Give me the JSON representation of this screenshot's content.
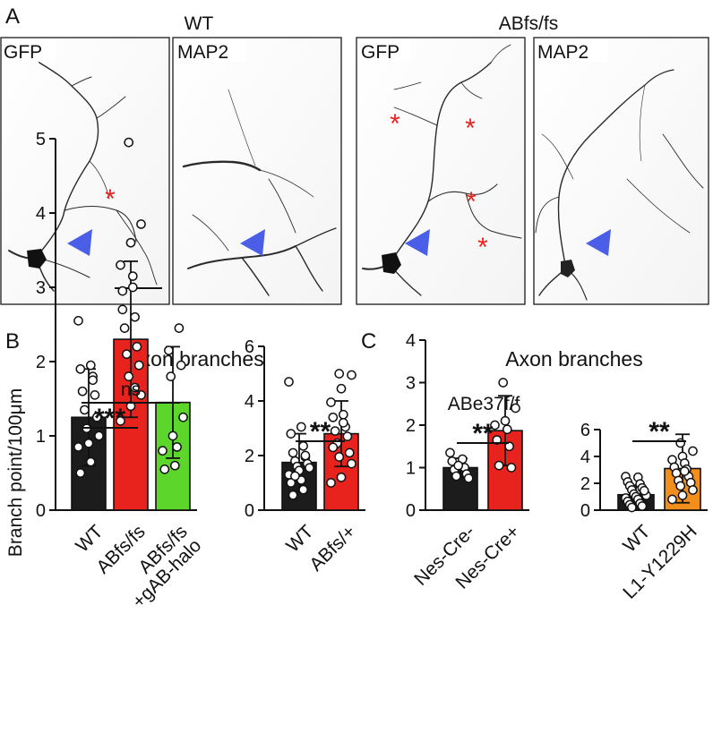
{
  "panel_a": {
    "letter": "A",
    "groups": [
      {
        "title": "WT",
        "panels": [
          {
            "label": "GFP",
            "asterisks": 1
          },
          {
            "label": "MAP2"
          }
        ]
      },
      {
        "title": "ABfs/fs",
        "panels": [
          {
            "label": "GFP",
            "asterisks": 4
          },
          {
            "label": "MAP2"
          }
        ]
      }
    ],
    "arrowhead_color": "#4a5ee8",
    "asterisk_color": "#e8231e",
    "asterisk_symbol": "*"
  },
  "panel_b": {
    "letter": "B",
    "title": "Axon branches"
  },
  "panel_c": {
    "letter": "C",
    "title": "Axon branches"
  },
  "chart_data": [
    {
      "type": "bar",
      "panel": "B",
      "ylabel": "Branch point/100μm",
      "ylim": [
        0,
        5
      ],
      "yticks": [
        "0",
        "1",
        "2",
        "3",
        "4",
        "5"
      ],
      "categories": [
        "WT",
        "ABfs/fs",
        "ABfs/fs\n+gAB-halo"
      ],
      "values": [
        1.25,
        2.3,
        1.45
      ],
      "errors": [
        0.65,
        1.05,
        0.75
      ],
      "colors": [
        "#1c1c1c",
        "#e8231e",
        "#5cd62a"
      ],
      "points": [
        [
          2.55,
          1.95,
          1.9,
          1.8,
          1.6,
          1.55,
          1.35,
          1.25,
          1.1,
          1.0,
          0.9,
          0.85,
          0.65,
          0.5,
          1.75
        ],
        [
          4.95,
          3.85,
          3.6,
          3.3,
          3.15,
          2.95,
          2.6,
          2.45,
          2.2,
          2.1,
          1.95,
          1.8,
          1.55,
          1.4,
          1.2,
          3.0,
          2.7,
          1.65
        ],
        [
          2.45,
          2.15,
          1.95,
          1.8,
          1.25,
          1.0,
          0.8,
          0.6,
          0.55,
          0.85
        ]
      ],
      "significance": [
        {
          "between": [
            0,
            1
          ],
          "label": "***"
        },
        {
          "between": [
            0,
            2
          ],
          "label": "ns"
        }
      ]
    },
    {
      "type": "bar",
      "panel": "B",
      "ylim": [
        0,
        6
      ],
      "yticks": [
        "0",
        "2",
        "4",
        "6"
      ],
      "categories": [
        "WT",
        "ABfs/+"
      ],
      "values": [
        1.75,
        2.8
      ],
      "errors": [
        1.05,
        1.2
      ],
      "colors": [
        "#1c1c1c",
        "#e8231e"
      ],
      "points": [
        [
          4.7,
          3.05,
          2.8,
          2.35,
          2.1,
          1.95,
          1.8,
          1.7,
          1.6,
          1.55,
          1.45,
          1.3,
          1.1,
          1.0,
          0.75,
          0.55,
          2.0,
          1.25
        ],
        [
          5.0,
          4.95,
          4.45,
          3.95,
          3.5,
          3.4,
          3.05,
          2.9,
          2.7,
          2.45,
          2.1,
          1.95,
          1.7,
          1.2,
          1.0,
          3.2,
          2.3
        ]
      ],
      "significance": [
        {
          "between": [
            0,
            1
          ],
          "label": "**"
        }
      ]
    },
    {
      "type": "bar",
      "panel": "C",
      "title": "ABe37f/f",
      "ylim": [
        0,
        4
      ],
      "yticks": [
        "0",
        "1",
        "2",
        "3",
        "4"
      ],
      "categories": [
        "Nes-Cre-",
        "Nes-Cre+"
      ],
      "values": [
        1.0,
        1.87
      ],
      "errors": [
        0.22,
        0.82
      ],
      "colors": [
        "#1c1c1c",
        "#e8231e"
      ],
      "points": [
        [
          1.35,
          1.2,
          1.15,
          1.0,
          0.95,
          0.85,
          0.8,
          0.75,
          1.05
        ],
        [
          3.0,
          2.4,
          2.1,
          2.0,
          1.9,
          1.65,
          1.5,
          1.05,
          1.0
        ]
      ],
      "significance": [
        {
          "between": [
            0,
            1
          ],
          "label": "**"
        }
      ]
    },
    {
      "type": "bar",
      "panel": "C",
      "ylim": [
        0,
        6
      ],
      "yticks": [
        "0",
        "2",
        "4",
        "6"
      ],
      "categories": [
        "WT",
        "L1-Y1229H"
      ],
      "values": [
        1.15,
        3.1
      ],
      "errors": [
        0.7,
        2.55
      ],
      "colors": [
        "#1c1c1c",
        "#f28e1c"
      ],
      "points": [
        [
          2.5,
          2.45,
          2.1,
          1.95,
          1.8,
          1.65,
          1.5,
          1.35,
          1.2,
          1.1,
          1.0,
          0.9,
          0.8,
          0.65,
          0.5,
          0.4,
          0.3,
          0.2,
          1.45
        ],
        [
          5.0,
          4.4,
          4.0,
          3.75,
          3.5,
          3.2,
          3.05,
          2.75,
          2.5,
          2.2,
          2.05,
          1.8,
          1.5,
          1.1,
          0.8,
          2.9
        ]
      ],
      "significance": [
        {
          "between": [
            0,
            1
          ],
          "label": "**"
        }
      ]
    }
  ]
}
